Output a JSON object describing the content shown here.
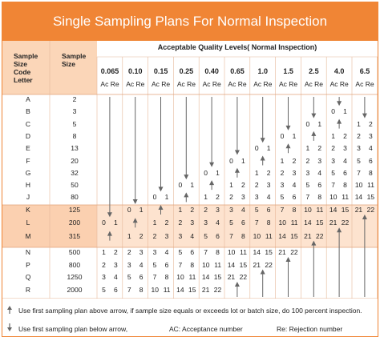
{
  "title": "Single Sampling Plans For Normal Inspection",
  "left_headers": {
    "code_letter": [
      "Sample",
      "Size",
      "Code",
      "Letter"
    ],
    "sample_size": [
      "Sample",
      "Size"
    ]
  },
  "aql_heading": "Acceptable Quality Levels( Normal Inspection)",
  "aql_levels": [
    "0.065",
    "0.10",
    "0.15",
    "0.25",
    "0.40",
    "0.65",
    "1.0",
    "1.5",
    "2.5",
    "4.0",
    "6.5"
  ],
  "ac_re_label": "Ac Re",
  "rows": [
    {
      "code": "A",
      "size": "2"
    },
    {
      "code": "B",
      "size": "3"
    },
    {
      "code": "C",
      "size": "5"
    },
    {
      "code": "D",
      "size": "8"
    },
    {
      "code": "E",
      "size": "13"
    },
    {
      "code": "F",
      "size": "20"
    },
    {
      "code": "G",
      "size": "32"
    },
    {
      "code": "H",
      "size": "50"
    },
    {
      "code": "J",
      "size": "80"
    },
    {
      "code": "K",
      "size": "125"
    },
    {
      "code": "L",
      "size": "200"
    },
    {
      "code": "M",
      "size": "315"
    },
    {
      "code": "N",
      "size": "500"
    },
    {
      "code": "P",
      "size": "800"
    },
    {
      "code": "Q",
      "size": "1250"
    },
    {
      "code": "R",
      "size": "2000"
    }
  ],
  "cells": [
    [
      "",
      "",
      "",
      "",
      "",
      "",
      "",
      "",
      "",
      "",
      ""
    ],
    [
      "",
      "",
      "",
      "",
      "",
      "",
      "",
      "",
      "",
      "0 1",
      ""
    ],
    [
      "",
      "",
      "",
      "",
      "",
      "",
      "",
      "",
      "0 1",
      "",
      "1 2"
    ],
    [
      "",
      "",
      "",
      "",
      "",
      "",
      "",
      "0 1",
      "",
      "1 2",
      "2 3"
    ],
    [
      "",
      "",
      "",
      "",
      "",
      "",
      "0 1",
      "",
      "1 2",
      "2 3",
      "3 4"
    ],
    [
      "",
      "",
      "",
      "",
      "",
      "0 1",
      "",
      "1 2",
      "2 3",
      "3 4",
      "5 6"
    ],
    [
      "",
      "",
      "",
      "",
      "0 1",
      "",
      "1 2",
      "2 3",
      "3 4",
      "5 6",
      "7 8"
    ],
    [
      "",
      "",
      "",
      "0 1",
      "",
      "1 2",
      "2 3",
      "3 4",
      "5 6",
      "7 8",
      "10 11"
    ],
    [
      "",
      "",
      "0 1",
      "",
      "1 2",
      "2 3",
      "3 4",
      "5 6",
      "7 8",
      "10 11",
      "14 15"
    ],
    [
      "",
      "0 1",
      "",
      "1 2",
      "2 3",
      "3 4",
      "5 6",
      "7 8",
      "10 11",
      "14 15",
      "21 22"
    ],
    [
      "0 1",
      "",
      "1 2",
      "2 3",
      "3 4",
      "5 6",
      "7 8",
      "10 11",
      "14 15",
      "21 22",
      ""
    ],
    [
      "",
      "1 2",
      "2 3",
      "3 4",
      "5 6",
      "7 8",
      "10 11",
      "14 15",
      "21 22",
      "",
      ""
    ],
    [
      "1 2",
      "2 3",
      "3 4",
      "5 6",
      "7 8",
      "10 11",
      "14 15",
      "21 22",
      "",
      "",
      ""
    ],
    [
      "2 3",
      "3 4",
      "5 6",
      "7 8",
      "10 11",
      "14 15",
      "21 22",
      "",
      "",
      "",
      ""
    ],
    [
      "3 4",
      "5 6",
      "7 8",
      "10 11",
      "14 15",
      "21 22",
      "",
      "",
      "",
      "",
      ""
    ],
    [
      "5 6",
      "7 8",
      "10 11",
      "14 15",
      "21 22",
      "",
      "",
      "",
      "",
      "",
      ""
    ]
  ],
  "footer": {
    "up_note": "Use first sampling plan above arrow, if sample size equals or exceeds lot or batch size, do 100 percent inspection.",
    "down_note": "Use first sampling plan below arrow,",
    "ac_note": "AC: Acceptance number",
    "re_note": "Re: Rejection number"
  },
  "colors": {
    "accent": "#f08535",
    "band_light": "#fde3cf",
    "band_mid": "#fbd0b0",
    "header_bg": "#fbd6b8",
    "arrow": "#666666"
  }
}
